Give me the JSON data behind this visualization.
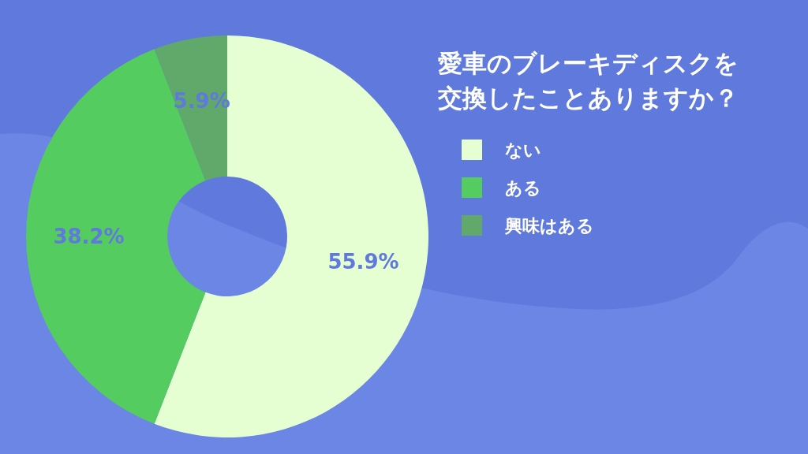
{
  "chart_data": {
    "type": "donut",
    "title": "愛車のブレーキディスクを交換したことありますか？",
    "categories": [
      "ない",
      "ある",
      "興味はある"
    ],
    "values": [
      55.9,
      38.2,
      5.9
    ],
    "colors": [
      "#e6ffd2",
      "#55cc60",
      "#60a96b"
    ],
    "value_labels": [
      "55.9%",
      "38.2%",
      "5.9%"
    ],
    "legend": "right"
  }
}
